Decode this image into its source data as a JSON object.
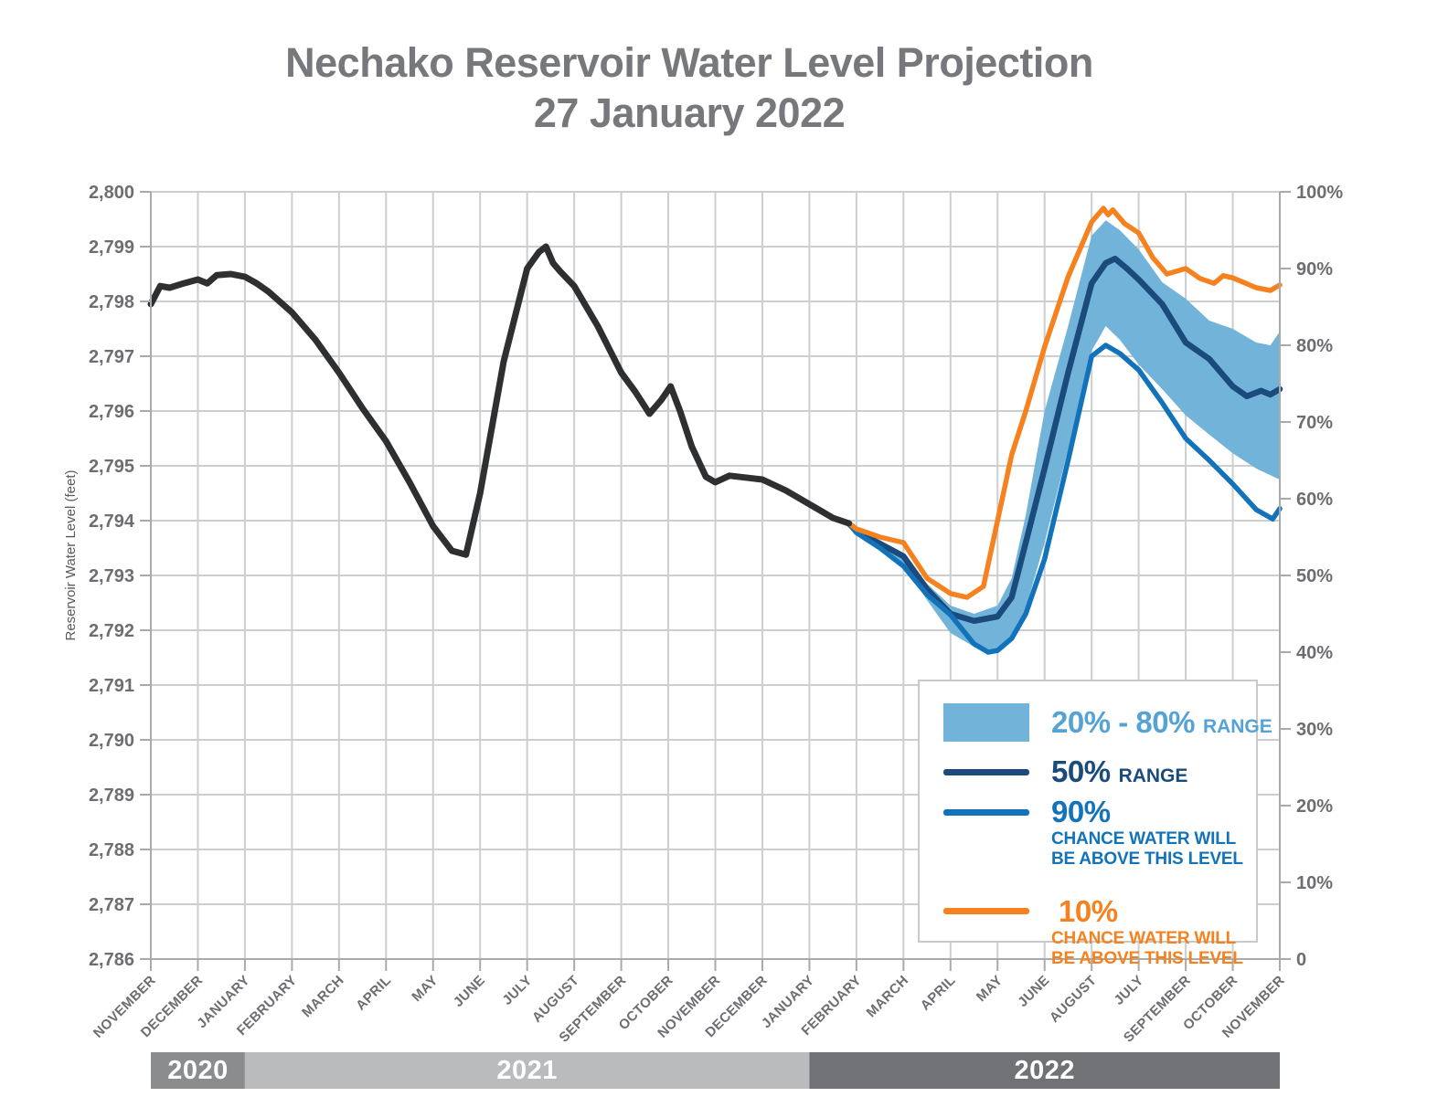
{
  "title": {
    "line1": "Nechako Reservoir Water Level Projection",
    "line2": "27 January 2022"
  },
  "chart_data": {
    "type": "line",
    "title": "Nechako Reservoir Water Level Projection",
    "subtitle": "27 January 2022",
    "ylabel_left": "Reservoir Water Level (feet)",
    "y_left": {
      "min": 2786,
      "max": 2800,
      "tick_step": 1,
      "tick_labels": [
        "2,786",
        "2,787",
        "2,788",
        "2,789",
        "2,790",
        "2,791",
        "2,792",
        "2,793",
        "2,794",
        "2,795",
        "2,796",
        "2,797",
        "2,798",
        "2,799",
        "2,800"
      ]
    },
    "y_right": {
      "min": 0,
      "max": 100,
      "tick_step": 10,
      "tick_labels": [
        "0",
        "10%",
        "20%",
        "30%",
        "40%",
        "50%",
        "60%",
        "70%",
        "80%",
        "90%",
        "100%"
      ]
    },
    "x_tick_labels": [
      "NOVEMBER",
      "DECEMBER",
      "JANUARY",
      "FEBRUARY",
      "MARCH",
      "APRIL",
      "MAY",
      "JUNE",
      "JULY",
      "AUGUST",
      "SEPTEMBER",
      "OCTOBER",
      "NOVEMBER",
      "DECEMBER",
      "JANUARY",
      "FEBRUARY",
      "MARCH",
      "APRIL",
      "MAY",
      "JUNE",
      "AUGUST",
      "JULY",
      "SEPTEMBER",
      "OCTOBER",
      "NOVEMBER"
    ],
    "x_span_months": 24,
    "grid": true,
    "year_bands": [
      {
        "label": "2020",
        "from": 0,
        "to": 2,
        "color": "#8A8C8E"
      },
      {
        "label": "2021",
        "from": 2,
        "to": 14,
        "color": "#B9BBBD"
      },
      {
        "label": "2022",
        "from": 14,
        "to": 24,
        "color": "#707275"
      }
    ],
    "series": [
      {
        "name": "range_20_80_band",
        "type": "band",
        "color": "#72B3D9",
        "upper": [
          [
            14.84,
            2793.95
          ],
          [
            15,
            2793.82
          ],
          [
            15.5,
            2793.63
          ],
          [
            16,
            2793.4
          ],
          [
            16.5,
            2792.85
          ],
          [
            17,
            2792.45
          ],
          [
            17.5,
            2792.3
          ],
          [
            18,
            2792.45
          ],
          [
            18.3,
            2792.95
          ],
          [
            18.6,
            2794.1
          ],
          [
            19,
            2796.0
          ],
          [
            19.5,
            2797.55
          ],
          [
            20,
            2799.2
          ],
          [
            20.3,
            2799.48
          ],
          [
            20.6,
            2799.3
          ],
          [
            21,
            2798.95
          ],
          [
            21.5,
            2798.35
          ],
          [
            22,
            2798.05
          ],
          [
            22.5,
            2797.65
          ],
          [
            23,
            2797.5
          ],
          [
            23.5,
            2797.25
          ],
          [
            23.8,
            2797.2
          ],
          [
            24,
            2797.45
          ]
        ],
        "lower": [
          [
            14.84,
            2793.95
          ],
          [
            15,
            2793.78
          ],
          [
            15.5,
            2793.55
          ],
          [
            16,
            2793.22
          ],
          [
            16.5,
            2792.55
          ],
          [
            17,
            2791.95
          ],
          [
            17.5,
            2791.7
          ],
          [
            17.8,
            2791.63
          ],
          [
            18,
            2791.67
          ],
          [
            18.3,
            2791.9
          ],
          [
            18.6,
            2792.4
          ],
          [
            19,
            2793.6
          ],
          [
            19.5,
            2795.3
          ],
          [
            20,
            2797.1
          ],
          [
            20.3,
            2797.55
          ],
          [
            20.6,
            2797.3
          ],
          [
            21,
            2796.85
          ],
          [
            21.5,
            2796.4
          ],
          [
            22,
            2795.92
          ],
          [
            22.5,
            2795.57
          ],
          [
            23,
            2795.23
          ],
          [
            23.5,
            2794.95
          ],
          [
            24,
            2794.75
          ]
        ]
      },
      {
        "name": "observed_water_level",
        "type": "line",
        "color": "#2E2F30",
        "width": 7,
        "points": [
          [
            0,
            2797.95
          ],
          [
            0.2,
            2798.28
          ],
          [
            0.4,
            2798.25
          ],
          [
            0.7,
            2798.33
          ],
          [
            1,
            2798.4
          ],
          [
            1.2,
            2798.33
          ],
          [
            1.4,
            2798.48
          ],
          [
            1.7,
            2798.5
          ],
          [
            2,
            2798.45
          ],
          [
            2.25,
            2798.33
          ],
          [
            2.5,
            2798.18
          ],
          [
            3,
            2797.8
          ],
          [
            3.5,
            2797.3
          ],
          [
            4,
            2796.7
          ],
          [
            4.5,
            2796.05
          ],
          [
            5,
            2795.45
          ],
          [
            5.5,
            2794.7
          ],
          [
            6,
            2793.9
          ],
          [
            6.4,
            2793.45
          ],
          [
            6.7,
            2793.38
          ],
          [
            7,
            2794.5
          ],
          [
            7.5,
            2796.9
          ],
          [
            8,
            2798.6
          ],
          [
            8.25,
            2798.9
          ],
          [
            8.4,
            2799.0
          ],
          [
            8.55,
            2798.7
          ],
          [
            8.7,
            2798.55
          ],
          [
            9,
            2798.28
          ],
          [
            9.5,
            2797.55
          ],
          [
            10,
            2796.7
          ],
          [
            10.3,
            2796.35
          ],
          [
            10.6,
            2795.95
          ],
          [
            10.85,
            2796.2
          ],
          [
            11.05,
            2796.45
          ],
          [
            11.25,
            2796.0
          ],
          [
            11.5,
            2795.35
          ],
          [
            11.8,
            2794.8
          ],
          [
            12,
            2794.7
          ],
          [
            12.3,
            2794.82
          ],
          [
            12.7,
            2794.78
          ],
          [
            13,
            2794.75
          ],
          [
            13.5,
            2794.55
          ],
          [
            14,
            2794.3
          ],
          [
            14.5,
            2794.05
          ],
          [
            14.84,
            2793.95
          ]
        ]
      },
      {
        "name": "p50_range",
        "type": "line",
        "color": "#1B4B7C",
        "width": 6.5,
        "points": [
          [
            14.84,
            2793.95
          ],
          [
            15,
            2793.8
          ],
          [
            15.5,
            2793.58
          ],
          [
            16,
            2793.35
          ],
          [
            16.5,
            2792.75
          ],
          [
            17,
            2792.3
          ],
          [
            17.5,
            2792.17
          ],
          [
            18,
            2792.25
          ],
          [
            18.3,
            2792.6
          ],
          [
            18.6,
            2793.6
          ],
          [
            19,
            2794.95
          ],
          [
            19.5,
            2796.7
          ],
          [
            20,
            2798.33
          ],
          [
            20.3,
            2798.7
          ],
          [
            20.5,
            2798.78
          ],
          [
            20.75,
            2798.6
          ],
          [
            21,
            2798.4
          ],
          [
            21.5,
            2797.95
          ],
          [
            22,
            2797.25
          ],
          [
            22.5,
            2796.95
          ],
          [
            23,
            2796.45
          ],
          [
            23.3,
            2796.27
          ],
          [
            23.6,
            2796.37
          ],
          [
            23.8,
            2796.3
          ],
          [
            24,
            2796.4
          ]
        ]
      },
      {
        "name": "p90_chance_above",
        "type": "line",
        "color": "#1273BA",
        "width": 5.5,
        "points": [
          [
            14.84,
            2793.95
          ],
          [
            15,
            2793.78
          ],
          [
            15.5,
            2793.5
          ],
          [
            16,
            2793.17
          ],
          [
            16.5,
            2792.65
          ],
          [
            17,
            2792.28
          ],
          [
            17.5,
            2791.75
          ],
          [
            17.8,
            2791.6
          ],
          [
            18,
            2791.63
          ],
          [
            18.3,
            2791.85
          ],
          [
            18.6,
            2792.3
          ],
          [
            19,
            2793.3
          ],
          [
            19.5,
            2795.1
          ],
          [
            20,
            2797.0
          ],
          [
            20.3,
            2797.2
          ],
          [
            20.6,
            2797.05
          ],
          [
            21,
            2796.75
          ],
          [
            21.5,
            2796.15
          ],
          [
            22,
            2795.5
          ],
          [
            22.5,
            2795.1
          ],
          [
            23,
            2794.67
          ],
          [
            23.5,
            2794.2
          ],
          [
            23.85,
            2794.03
          ],
          [
            24,
            2794.22
          ]
        ]
      },
      {
        "name": "p10_chance_above",
        "type": "line",
        "color": "#F5821F",
        "width": 5.5,
        "points": [
          [
            14.84,
            2793.95
          ],
          [
            15,
            2793.85
          ],
          [
            15.5,
            2793.7
          ],
          [
            16,
            2793.6
          ],
          [
            16.5,
            2792.95
          ],
          [
            17,
            2792.67
          ],
          [
            17.35,
            2792.6
          ],
          [
            17.7,
            2792.8
          ],
          [
            18,
            2794.0
          ],
          [
            18.3,
            2795.2
          ],
          [
            18.6,
            2796.0
          ],
          [
            19,
            2797.17
          ],
          [
            19.5,
            2798.45
          ],
          [
            20,
            2799.45
          ],
          [
            20.25,
            2799.7
          ],
          [
            20.35,
            2799.58
          ],
          [
            20.45,
            2799.67
          ],
          [
            20.7,
            2799.42
          ],
          [
            21,
            2799.25
          ],
          [
            21.3,
            2798.8
          ],
          [
            21.6,
            2798.5
          ],
          [
            22,
            2798.6
          ],
          [
            22.3,
            2798.42
          ],
          [
            22.6,
            2798.33
          ],
          [
            22.8,
            2798.47
          ],
          [
            23,
            2798.43
          ],
          [
            23.5,
            2798.25
          ],
          [
            23.8,
            2798.2
          ],
          [
            24,
            2798.3
          ]
        ]
      }
    ],
    "axis_color": "#A8AAAD",
    "grid_color": "#CDCED0"
  },
  "legend": {
    "items": [
      {
        "kind": "band",
        "swatch_color": "#72B3D9",
        "label_main": "20% - 80%",
        "label_suffix": "RANGE",
        "text_color": "#55A3D4"
      },
      {
        "kind": "line",
        "swatch_color": "#1B4B7C",
        "label_main": "50%",
        "label_suffix": "RANGE",
        "text_color": "#1B4B7C"
      },
      {
        "kind": "line",
        "swatch_color": "#1273BA",
        "label_main": "90%",
        "sub": [
          "CHANCE WATER WILL",
          "BE ABOVE THIS LEVEL"
        ],
        "text_color": "#1273BA"
      },
      {
        "kind": "line",
        "swatch_color": "#F5821F",
        "label_main": "10%",
        "sub": [
          "CHANCE WATER WILL",
          "BE ABOVE THIS LEVEL"
        ],
        "text_color": "#F5821F"
      }
    ]
  }
}
